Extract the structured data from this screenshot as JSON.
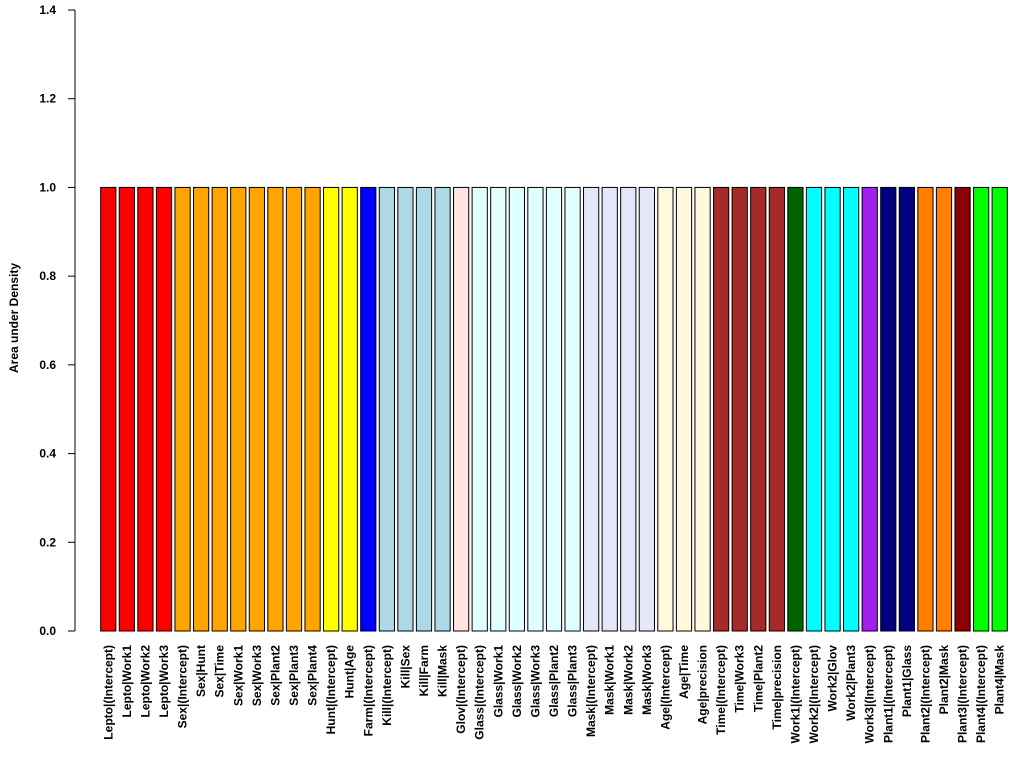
{
  "chart_data": {
    "type": "bar",
    "title": "",
    "xlabel": "",
    "ylabel": "Area under Density",
    "ylim": [
      0,
      1.4
    ],
    "yticks": [
      "0.0",
      "0.2",
      "0.4",
      "0.6",
      "0.8",
      "1.0",
      "1.2",
      "1.4"
    ],
    "grid": false,
    "categories": [
      "Lepto|(Intercept)",
      "Lepto|Work1",
      "Lepto|Work2",
      "Lepto|Work3",
      "Sex|(Intercept)",
      "Sex|Hunt",
      "Sex|Time",
      "Sex|Work1",
      "Sex|Work3",
      "Sex|Plant2",
      "Sex|Plant3",
      "Sex|Plant4",
      "Hunt|(Intercept)",
      "Hunt|Age",
      "Farm|(Intercept)",
      "Kill|(Intercept)",
      "Kill|Sex",
      "Kill|Farm",
      "Kill|Mask",
      "Glov|(Intercept)",
      "Glass|(Intercept)",
      "Glass|Work1",
      "Glass|Work2",
      "Glass|Work3",
      "Glass|Plant2",
      "Glass|Plant3",
      "Mask|(Intercept)",
      "Mask|Work1",
      "Mask|Work2",
      "Mask|Work3",
      "Age|(Intercept)",
      "Age|Time",
      "Age|precision",
      "Time|(Intercept)",
      "Time|Work3",
      "Time|Plant2",
      "Time|precision",
      "Work1|(Intercept)",
      "Work2|(Intercept)",
      "Work2|Glov",
      "Work2|Plant3",
      "Work3|(Intercept)",
      "Plant1|(Intercept)",
      "Plant1|Glass",
      "Plant2|(Intercept)",
      "Plant2|Mask",
      "Plant3|(Intercept)",
      "Plant4|(Intercept)",
      "Plant4|Mask"
    ],
    "values": [
      1,
      1,
      1,
      1,
      1,
      1,
      1,
      1,
      1,
      1,
      1,
      1,
      1,
      1,
      1,
      1,
      1,
      1,
      1,
      1,
      1,
      1,
      1,
      1,
      1,
      1,
      1,
      1,
      1,
      1,
      1,
      1,
      1,
      1,
      1,
      1,
      1,
      1,
      1,
      1,
      1,
      1,
      1,
      1,
      1,
      1,
      1,
      1,
      1
    ],
    "colors": [
      "#ff0000",
      "#ff0000",
      "#ff0000",
      "#ff0000",
      "#ffa500",
      "#ffa500",
      "#ffa500",
      "#ffa500",
      "#ffa500",
      "#ffa500",
      "#ffa500",
      "#ffa500",
      "#ffff00",
      "#ffff00",
      "#0000ff",
      "#add8e6",
      "#add8e6",
      "#add8e6",
      "#add8e6",
      "#ffe4e1",
      "#e0ffff",
      "#e0ffff",
      "#e0ffff",
      "#e0ffff",
      "#e0ffff",
      "#e0ffff",
      "#e6e6fa",
      "#e6e6fa",
      "#e6e6fa",
      "#e6e6fa",
      "#fff8dc",
      "#fff8dc",
      "#fff8dc",
      "#a52a2a",
      "#a52a2a",
      "#a52a2a",
      "#a52a2a",
      "#006400",
      "#00ffff",
      "#00ffff",
      "#00ffff",
      "#a020f0",
      "#000080",
      "#000080",
      "#ff7f00",
      "#ff7f00",
      "#8b0000",
      "#00ff00",
      "#00ff00"
    ]
  }
}
